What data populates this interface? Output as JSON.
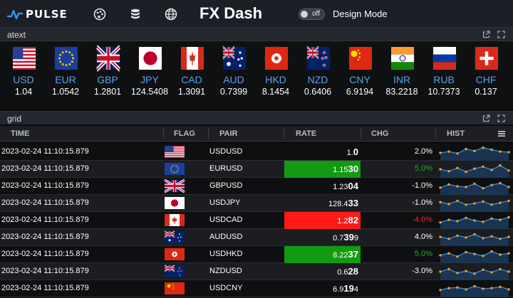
{
  "header": {
    "logo_text": "PULSE",
    "title": "FX Dash",
    "toggle_state": "off",
    "design_mode_label": "Design Mode",
    "nav_icons": [
      "palette-icon",
      "database-icon",
      "globe-icon"
    ]
  },
  "ticker_panel": {
    "title": "atext",
    "currencies": [
      {
        "code": "USD",
        "value": "1.04",
        "flag": "us"
      },
      {
        "code": "EUR",
        "value": "1.0542",
        "flag": "eu"
      },
      {
        "code": "GBP",
        "value": "1.2801",
        "flag": "gb"
      },
      {
        "code": "JPY",
        "value": "124.5408",
        "flag": "jp"
      },
      {
        "code": "CAD",
        "value": "1.3091",
        "flag": "ca"
      },
      {
        "code": "AUD",
        "value": "0.7399",
        "flag": "au"
      },
      {
        "code": "HKD",
        "value": "8.1454",
        "flag": "hk"
      },
      {
        "code": "NZD",
        "value": "0.6406",
        "flag": "nz"
      },
      {
        "code": "CNY",
        "value": "6.9194",
        "flag": "cn"
      },
      {
        "code": "INR",
        "value": "83.2218",
        "flag": "in"
      },
      {
        "code": "RUB",
        "value": "10.7373",
        "flag": "ru"
      },
      {
        "code": "CHF",
        "value": "0.137",
        "flag": "ch"
      }
    ]
  },
  "grid_panel": {
    "title": "grid",
    "columns": {
      "time": "TIME",
      "flag": "FLAG",
      "pair": "PAIR",
      "rate": "RATE",
      "chg": "CHG",
      "hist": "HIST"
    },
    "rows": [
      {
        "time": "2023-02-24 11:10:15.879",
        "flag": "us",
        "pair": "USDUSD",
        "rate_small": "1.",
        "rate_big": "0",
        "rate_tail": "",
        "rate_state": "none",
        "chg": "2.0%",
        "chg_color": "#ffffff",
        "hist": [
          0.45,
          0.55,
          0.4,
          0.75,
          0.6,
          0.85,
          0.7,
          0.55,
          0.5
        ]
      },
      {
        "time": "2023-02-24 11:10:15.879",
        "flag": "eu",
        "pair": "EURUSD",
        "rate_small": "1.15",
        "rate_big": "30",
        "rate_tail": "",
        "rate_state": "up",
        "chg": "5.0%",
        "chg_color": "#22aa22",
        "hist": [
          0.5,
          0.35,
          0.6,
          0.3,
          0.55,
          0.7,
          0.45,
          0.8,
          0.4
        ]
      },
      {
        "time": "2023-02-24 11:10:15.879",
        "flag": "gb",
        "pair": "GBPUSD",
        "rate_small": "1.23",
        "rate_big": "04",
        "rate_tail": "",
        "rate_state": "none",
        "chg": "-1.0%",
        "chg_color": "#ffffff",
        "hist": [
          0.4,
          0.65,
          0.5,
          0.45,
          0.7,
          0.35,
          0.6,
          0.75,
          0.45
        ]
      },
      {
        "time": "2023-02-24 11:10:15.879",
        "flag": "jp",
        "pair": "USDJPY",
        "rate_small": "128.4",
        "rate_big": "33",
        "rate_tail": "",
        "rate_state": "none",
        "chg": "-1.0%",
        "chg_color": "#ffffff",
        "hist": [
          0.6,
          0.45,
          0.7,
          0.4,
          0.5,
          0.65,
          0.4,
          0.55,
          0.7
        ]
      },
      {
        "time": "2023-02-24 11:10:15.879",
        "flag": "ca",
        "pair": "USDCAD",
        "rate_small": "1.2",
        "rate_big": "82",
        "rate_tail": "",
        "rate_state": "down",
        "chg": "-4.0%",
        "chg_color": "#ff2222",
        "hist": [
          0.35,
          0.55,
          0.45,
          0.7,
          0.5,
          0.4,
          0.65,
          0.55,
          0.75
        ]
      },
      {
        "time": "2023-02-24 11:10:15.879",
        "flag": "au",
        "pair": "AUDUSD",
        "rate_small": "0.7",
        "rate_big": "39",
        "rate_tail": "9",
        "rate_state": "none",
        "chg": "4.0%",
        "chg_color": "#ffffff",
        "hist": [
          0.55,
          0.4,
          0.65,
          0.5,
          0.75,
          0.45,
          0.6,
          0.4,
          0.55
        ]
      },
      {
        "time": "2023-02-24 11:10:15.879",
        "flag": "hk",
        "pair": "USDHKD",
        "rate_small": "8.22",
        "rate_big": "37",
        "rate_tail": "",
        "rate_state": "up",
        "chg": "5.0%",
        "chg_color": "#22aa22",
        "hist": [
          0.45,
          0.6,
          0.35,
          0.7,
          0.55,
          0.4,
          0.75,
          0.5,
          0.6
        ]
      },
      {
        "time": "2023-02-24 11:10:15.879",
        "flag": "nz",
        "pair": "NZDUSD",
        "rate_small": "0.6",
        "rate_big": "28",
        "rate_tail": "",
        "rate_state": "none",
        "chg": "-3.0%",
        "chg_color": "#ffffff",
        "hist": [
          0.5,
          0.7,
          0.4,
          0.55,
          0.35,
          0.65,
          0.45,
          0.7,
          0.5
        ]
      },
      {
        "time": "2023-02-24 11:10:15.879",
        "flag": "cn",
        "pair": "USDCNY",
        "rate_small": "6.9",
        "rate_big": "19",
        "rate_tail": "4",
        "rate_state": "none",
        "chg": "",
        "chg_color": "#ffffff",
        "hist": [
          0.4,
          0.55,
          0.6,
          0.45,
          0.7,
          0.5,
          0.55,
          0.65,
          0.45
        ]
      }
    ]
  }
}
